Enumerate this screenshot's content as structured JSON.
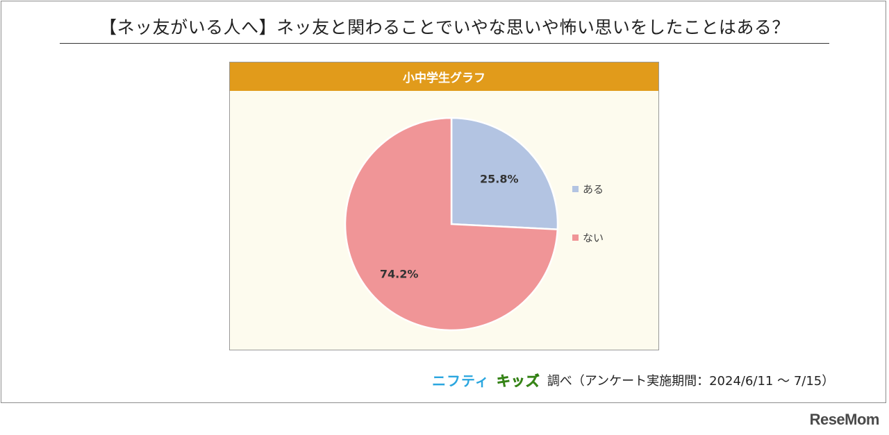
{
  "title": "【ネッ友がいる人へ】ネッ友と関わることでいやな思いや怖い思いをしたことはある？",
  "panel": {
    "header": "小中学生グラフ"
  },
  "chart_data": {
    "type": "pie",
    "title": "小中学生グラフ",
    "categories": [
      "ある",
      "ない"
    ],
    "values": [
      25.8,
      74.2
    ],
    "labels": [
      "25.8%",
      "74.2%"
    ],
    "colors": [
      "#b3c4e2",
      "#f09597"
    ],
    "legend_position": "right"
  },
  "source": {
    "brand_part1": "ニフティ",
    "brand_part2": "キッズ",
    "text": "調べ（アンケート実施期間：2024/6/11 ～ 7/15）"
  },
  "watermark": "ReseMom"
}
